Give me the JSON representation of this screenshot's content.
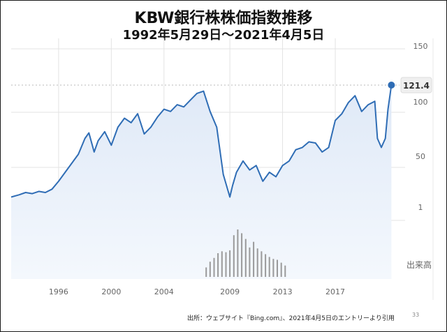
{
  "title": "KBW銀行株株価指数推移",
  "subtitle": "1992年5月29日～2021年4月5日",
  "source_note": "出所：ウェブサイト『Bing.com』、2021年4月5日のエントリーより引用",
  "page_number": "33",
  "colors": {
    "line": "#2f6db5",
    "area_top": "#dfe9f7",
    "area_bottom": "#f4f8fd",
    "grid": "#e3e3e3",
    "volume": "#9a9a9a",
    "axis_text": "#666666",
    "badge_bg": "#f0f0f0"
  },
  "chart_data": {
    "type": "line",
    "title": "KBW銀行株株価指数推移",
    "xlabel": "",
    "ylabel": "",
    "x_tick_labels": [
      "1996",
      "2000",
      "2004",
      "2009",
      "2013",
      "2017"
    ],
    "y_tick_labels": [
      "150",
      "100",
      "50",
      "1"
    ],
    "xlim": [
      1992.4,
      2022.3
    ],
    "grid": true,
    "last_value_label": "121.4",
    "volume_label": "出来高",
    "series": [
      {
        "x": [
          1992.4,
          1993.0,
          1993.5,
          1994.0,
          1994.5,
          1995.0,
          1995.5,
          1996.0,
          1996.5,
          1997.0,
          1997.5,
          1998.0,
          1998.3,
          1998.7,
          1999.0,
          1999.5,
          2000.0,
          2000.5,
          2001.0,
          2001.5,
          2002.0,
          2002.5,
          2003.0,
          2003.5,
          2004.0,
          2004.5,
          2005.0,
          2005.5,
          2006.0,
          2006.5,
          2007.0,
          2007.5,
          2008.0,
          2008.5,
          2009.0,
          2009.2,
          2009.5,
          2010.0,
          2010.5,
          2011.0,
          2011.5,
          2012.0,
          2012.5,
          2013.0,
          2013.5,
          2014.0,
          2014.5,
          2015.0,
          2015.5,
          2016.0,
          2016.5,
          2017.0,
          2017.5,
          2018.0,
          2018.5,
          2019.0,
          2019.5,
          2020.0,
          2020.2,
          2020.5,
          2020.8,
          2021.0,
          2021.26
        ],
        "y": [
          22,
          24,
          26,
          25,
          27,
          26,
          29,
          36,
          44,
          52,
          60,
          74,
          79,
          62,
          72,
          80,
          68,
          84,
          92,
          88,
          96,
          78,
          84,
          93,
          100,
          98,
          104,
          102,
          108,
          114,
          116,
          98,
          84,
          42,
          22,
          32,
          44,
          54,
          46,
          50,
          36,
          44,
          40,
          50,
          54,
          64,
          66,
          71,
          70,
          62,
          66,
          90,
          96,
          106,
          112,
          98,
          104,
          107,
          74,
          66,
          74,
          100,
          121.4
        ]
      }
    ],
    "volume": {
      "x": [
        2007.2,
        2007.5,
        2007.8,
        2008.1,
        2008.4,
        2008.7,
        2009.0,
        2009.3,
        2009.6,
        2009.9,
        2010.2,
        2010.5,
        2010.8,
        2011.1,
        2011.4,
        2011.7,
        2012.0,
        2012.3,
        2012.6,
        2012.9,
        2013.2
      ],
      "y": [
        0.2,
        0.32,
        0.4,
        0.5,
        0.54,
        0.52,
        0.56,
        0.88,
        1.0,
        0.92,
        0.8,
        0.62,
        0.74,
        0.6,
        0.54,
        0.48,
        0.42,
        0.38,
        0.36,
        0.3,
        0.24
      ]
    }
  }
}
